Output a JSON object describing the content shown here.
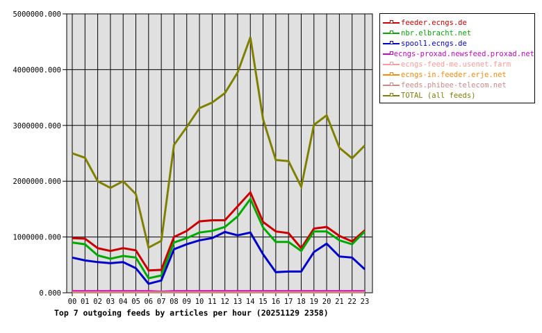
{
  "chart_data": {
    "type": "line",
    "title": "Top 7 outgoing feeds by articles per hour (20251129 2358)",
    "xlabel": "",
    "ylabel": "",
    "ylim": [
      0,
      5000000
    ],
    "yticks": [
      "0.000",
      "1000000.000",
      "2000000.000",
      "3000000.000",
      "4000000.000",
      "5000000.000"
    ],
    "grid": true,
    "legend_position": "right",
    "categories": [
      "00",
      "01",
      "02",
      "03",
      "04",
      "05",
      "06",
      "07",
      "08",
      "09",
      "10",
      "11",
      "12",
      "13",
      "14",
      "15",
      "16",
      "17",
      "18",
      "19",
      "20",
      "21",
      "22",
      "23"
    ],
    "series": [
      {
        "name": "feeder.ecngs.de",
        "color": "#cc0000",
        "values": [
          980000,
          970000,
          800000,
          750000,
          800000,
          760000,
          400000,
          410000,
          1000000,
          1110000,
          1280000,
          1300000,
          1300000,
          1550000,
          1800000,
          1270000,
          1100000,
          1070000,
          800000,
          1150000,
          1180000,
          1020000,
          920000,
          1120000
        ]
      },
      {
        "name": "nbr.elbracht.net",
        "color": "#00aa00",
        "values": [
          900000,
          870000,
          670000,
          610000,
          660000,
          630000,
          260000,
          310000,
          900000,
          980000,
          1080000,
          1110000,
          1180000,
          1370000,
          1680000,
          1170000,
          910000,
          910000,
          750000,
          1100000,
          1100000,
          940000,
          870000,
          1100000
        ]
      },
      {
        "name": "spool1.ecngs.de",
        "color": "#0000cc",
        "values": [
          630000,
          580000,
          550000,
          530000,
          550000,
          440000,
          160000,
          220000,
          780000,
          870000,
          940000,
          980000,
          1090000,
          1030000,
          1080000,
          690000,
          370000,
          380000,
          380000,
          730000,
          880000,
          650000,
          630000,
          420000
        ]
      },
      {
        "name": "ecngs-proxad.newsfeed.proxad.net",
        "color": "#cc00cc",
        "values": [
          30000,
          30000,
          30000,
          30000,
          30000,
          30000,
          30000,
          20000,
          30000,
          30000,
          30000,
          30000,
          30000,
          30000,
          30000,
          30000,
          30000,
          30000,
          30000,
          30000,
          30000,
          30000,
          30000,
          30000
        ]
      },
      {
        "name": "ecngs-feed-me.usenet.farm",
        "color": "#ff9999",
        "values": [
          10000,
          10000,
          10000,
          10000,
          10000,
          10000,
          10000,
          10000,
          10000,
          10000,
          10000,
          10000,
          10000,
          10000,
          10000,
          10000,
          10000,
          10000,
          10000,
          10000,
          10000,
          10000,
          10000,
          10000
        ]
      },
      {
        "name": "ecngs-in.feeder.erje.net",
        "color": "#ff8800",
        "values": [
          10000,
          10000,
          10000,
          10000,
          10000,
          10000,
          10000,
          10000,
          10000,
          10000,
          10000,
          10000,
          10000,
          10000,
          10000,
          10000,
          10000,
          10000,
          10000,
          10000,
          10000,
          10000,
          10000,
          10000
        ]
      },
      {
        "name": "feeds.phibee-telecom.net",
        "color": "#cc8888",
        "values": [
          10000,
          10000,
          10000,
          10000,
          10000,
          10000,
          10000,
          10000,
          10000,
          10000,
          10000,
          10000,
          10000,
          10000,
          10000,
          10000,
          10000,
          10000,
          10000,
          10000,
          10000,
          10000,
          10000,
          10000
        ]
      },
      {
        "name": "TOTAL (all feeds)",
        "color": "#808000",
        "values": [
          2500000,
          2420000,
          2000000,
          1880000,
          2000000,
          1770000,
          810000,
          930000,
          2650000,
          2970000,
          3310000,
          3410000,
          3580000,
          3950000,
          4580000,
          3110000,
          2380000,
          2360000,
          1900000,
          3010000,
          3180000,
          2600000,
          2410000,
          2640000
        ]
      }
    ]
  }
}
